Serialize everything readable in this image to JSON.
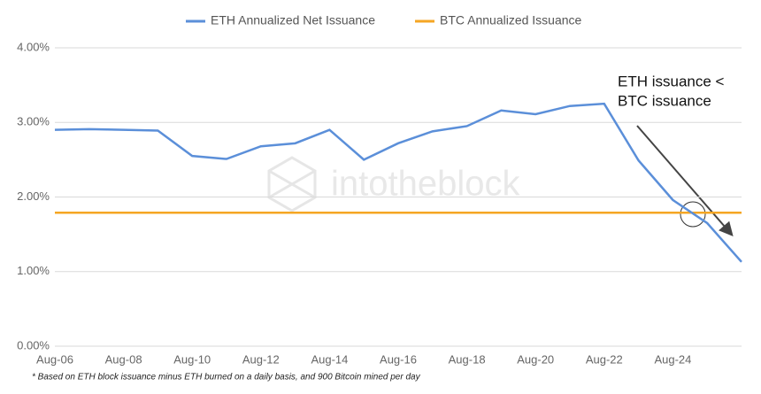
{
  "chart_data": {
    "type": "line",
    "categories": [
      "Aug-06",
      null,
      "Aug-08",
      null,
      "Aug-10",
      null,
      "Aug-12",
      null,
      "Aug-14",
      null,
      "Aug-16",
      null,
      "Aug-18",
      null,
      "Aug-20",
      null,
      "Aug-22",
      null,
      "Aug-24",
      null,
      null
    ],
    "series": [
      {
        "name": "ETH Annualized Net Issuance",
        "color": "#5b8fd9",
        "values": [
          2.9,
          2.91,
          2.9,
          2.89,
          2.55,
          2.51,
          2.68,
          2.72,
          2.9,
          2.5,
          2.72,
          2.88,
          2.95,
          3.16,
          3.11,
          3.22,
          3.25,
          2.49,
          1.96,
          1.65,
          1.13
        ]
      },
      {
        "name": "BTC Annualized Issuance",
        "color": "#f5a623",
        "values": [
          1.79,
          1.79,
          1.79,
          1.79,
          1.79,
          1.79,
          1.79,
          1.79,
          1.79,
          1.79,
          1.79,
          1.79,
          1.79,
          1.79,
          1.79,
          1.79,
          1.79,
          1.79,
          1.79,
          1.79,
          1.79
        ]
      }
    ],
    "ylim": [
      0,
      4
    ],
    "yticks": [
      {
        "value": 0,
        "label": "0.00%"
      },
      {
        "value": 1,
        "label": "1.00%"
      },
      {
        "value": 2,
        "label": "2.00%"
      },
      {
        "value": 3,
        "label": "3.00%"
      },
      {
        "value": 4,
        "label": "4.00%"
      }
    ],
    "grid": true,
    "legend": "top",
    "annotation": [
      "ETH issuance <",
      "BTC issuance"
    ],
    "watermark": "intotheblock",
    "footnote": "* Based on ETH block issuance minus ETH burned on a daily basis, and 900 Bitcoin mined per day"
  }
}
